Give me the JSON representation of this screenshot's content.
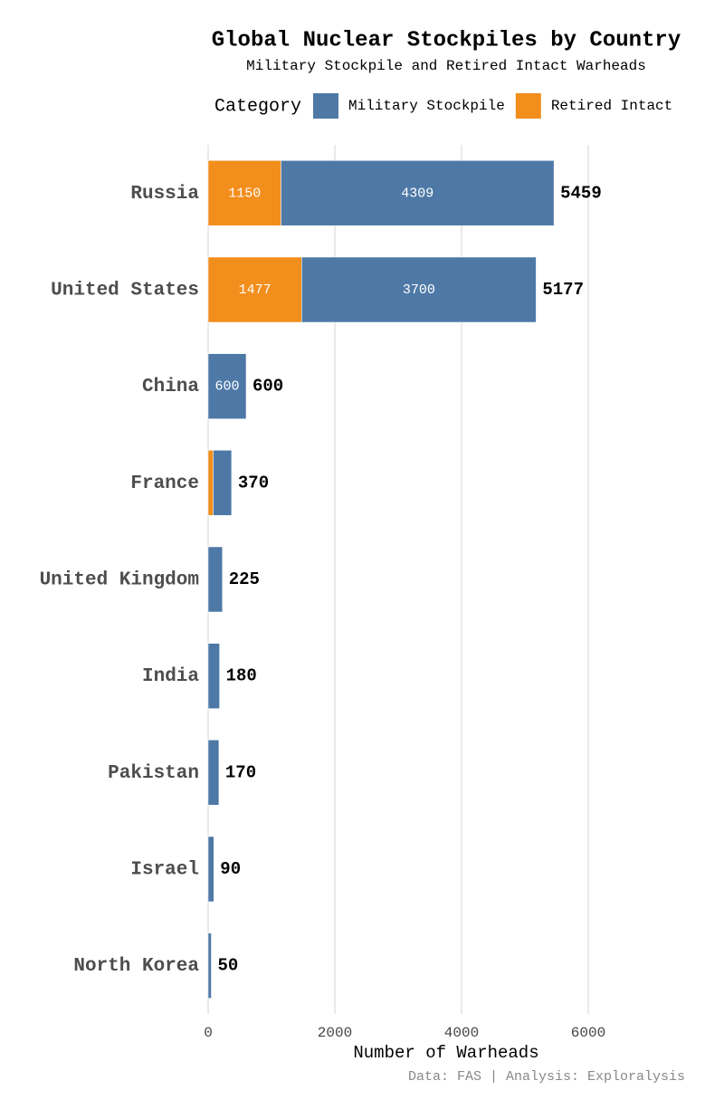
{
  "chart_data": {
    "type": "stacked-bar-horizontal",
    "title": "Global Nuclear Stockpiles by Country",
    "subtitle": "Military Stockpile and Retired Intact Warheads",
    "legend_title": "Category",
    "x_label": "Number of Warheads",
    "caption": "Data: FAS | Analysis: Exploralysis",
    "categories": [
      "Russia",
      "United States",
      "China",
      "France",
      "United Kingdom",
      "India",
      "Pakistan",
      "Israel",
      "North Korea"
    ],
    "series": [
      {
        "name": "Military Stockpile",
        "color": "#4e79a7",
        "values": [
          4309,
          3700,
          600,
          290,
          225,
          180,
          170,
          90,
          50
        ]
      },
      {
        "name": "Retired Intact",
        "color": "#f28e1c",
        "values": [
          1150,
          1477,
          0,
          80,
          0,
          0,
          0,
          0,
          0
        ]
      }
    ],
    "totals": [
      5459,
      5177,
      600,
      370,
      225,
      180,
      170,
      90,
      50
    ],
    "xlim": [
      0,
      7500
    ],
    "xticks": [
      0,
      2000,
      4000,
      6000
    ],
    "grid": true
  }
}
